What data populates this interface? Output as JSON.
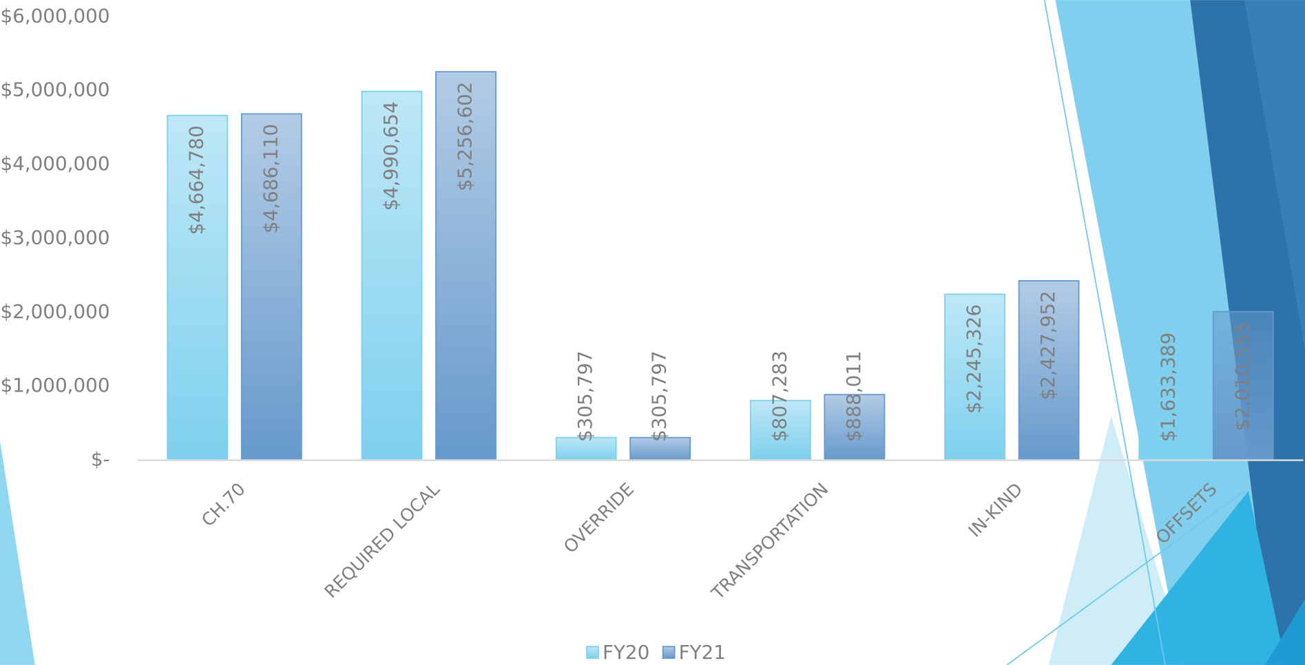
{
  "chart_data": {
    "type": "bar",
    "categories": [
      "CH.70",
      "REQUIRED LOCAL",
      "OVERRIDE",
      "TRANSPORTATION",
      "IN-KIND",
      "OFFSETS"
    ],
    "series": [
      {
        "name": "FY20",
        "color": "#7dd0ee",
        "values": [
          4664780,
          4990654,
          305797,
          807283,
          2245326,
          1633389
        ],
        "value_labels": [
          "$4,664,780",
          "$4,990,654",
          "$305,797",
          "$807,283",
          "$2,245,326",
          "$1,633,389"
        ]
      },
      {
        "name": "FY21",
        "color": "#6699cc",
        "values": [
          4686110,
          5256602,
          305797,
          888011,
          2427952,
          2010555
        ],
        "value_labels": [
          "$4,686,110",
          "$5,256,602",
          "$305,797",
          "$888,011",
          "$2,427,952",
          "$2,010,555"
        ]
      }
    ],
    "ylim": [
      0,
      6000000
    ],
    "yticks": [
      {
        "value": 0,
        "label": "$-"
      },
      {
        "value": 1000000,
        "label": "$1,000,000"
      },
      {
        "value": 2000000,
        "label": "$2,000,000"
      },
      {
        "value": 3000000,
        "label": "$3,000,000"
      },
      {
        "value": 4000000,
        "label": "$4,000,000"
      },
      {
        "value": 5000000,
        "label": "$5,000,000"
      },
      {
        "value": 6000000,
        "label": "$6,000,000"
      }
    ],
    "grid": false,
    "legend": "bottom"
  }
}
